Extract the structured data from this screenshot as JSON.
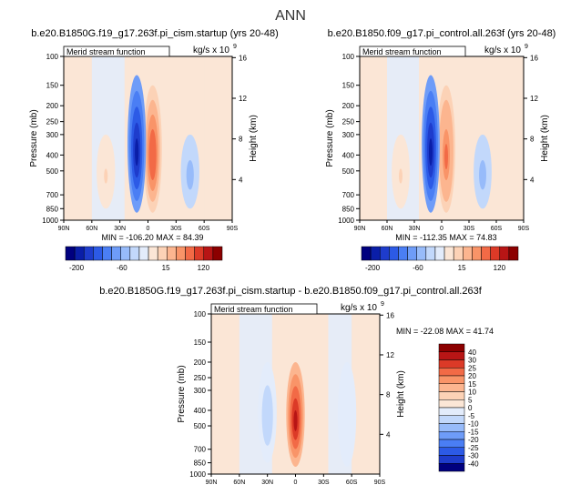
{
  "figure": {
    "title": "ANN",
    "panel1_title": "b.e20.B1850G.f19_g17.263f.pi_cism.startup (yrs 20-48)",
    "panel2_title": "b.e20.B1850.f09_g17.pi_control.all.263f (yrs 20-48)",
    "panel3_title": "b.e20.B1850G.f19_g17.263f.pi_cism.startup - b.e20.B1850.f09_g17.pi_control.all.263f"
  },
  "chart_data": [
    {
      "type": "heatmap",
      "panel": "top-left",
      "title": "Merid stream function",
      "units": "kg/s x 10",
      "units_exp": "9",
      "xlabel": "",
      "ylabel": "Pressure (mb)",
      "y2label": "Height (km)",
      "x_ticks": [
        "90N",
        "60N",
        "30N",
        "0",
        "30S",
        "60S",
        "90S"
      ],
      "y_ticks": [
        100,
        150,
        200,
        250,
        300,
        400,
        500,
        700,
        850,
        1000
      ],
      "y2_ticks": [
        4,
        8,
        12,
        16
      ],
      "ylim": [
        1000,
        100
      ],
      "min_text": "MIN = -106.20",
      "max_text": "MAX =  84.39",
      "min": -106.2,
      "max": 84.39,
      "colorbar": {
        "labels": [
          "-200",
          "-60",
          "15",
          "120"
        ],
        "colors": [
          "#00007f",
          "#0a1ea8",
          "#1e3ccc",
          "#2c5ae6",
          "#4a7ef4",
          "#6e9cf8",
          "#97bbfa",
          "#c2d8fb",
          "#e3ecfb",
          "#fbe6d6",
          "#fcd2b6",
          "#fcb58f",
          "#f99468",
          "#f26a46",
          "#dc3a27",
          "#b81515",
          "#8c0000"
        ]
      },
      "cells": [
        {
          "lat": -5,
          "p_top": 150,
          "p_bot": 900,
          "value": 80
        },
        {
          "lat": 12,
          "p_top": 130,
          "p_bot": 900,
          "value": -100
        },
        {
          "lat": -45,
          "p_top": 300,
          "p_bot": 850,
          "value": -30
        },
        {
          "lat": 45,
          "p_top": 300,
          "p_bot": 850,
          "value": 25
        }
      ]
    },
    {
      "type": "heatmap",
      "panel": "top-right",
      "title": "Merid stream function",
      "units": "kg/s x 10",
      "units_exp": "9",
      "xlabel": "",
      "ylabel": "Pressure (mb)",
      "y2label": "Height (km)",
      "x_ticks": [
        "90N",
        "60N",
        "30N",
        "0",
        "30S",
        "60S",
        "90S"
      ],
      "y_ticks": [
        100,
        150,
        200,
        250,
        300,
        400,
        500,
        700,
        850,
        1000
      ],
      "y2_ticks": [
        4,
        8,
        12,
        16
      ],
      "ylim": [
        1000,
        100
      ],
      "min_text": "MIN = -112.35",
      "max_text": "MAX =  74.83",
      "min": -112.35,
      "max": 74.83,
      "colorbar": {
        "labels": [
          "-200",
          "-60",
          "15",
          "120"
        ],
        "colors": [
          "#00007f",
          "#0a1ea8",
          "#1e3ccc",
          "#2c5ae6",
          "#4a7ef4",
          "#6e9cf8",
          "#97bbfa",
          "#c2d8fb",
          "#e3ecfb",
          "#fbe6d6",
          "#fcd2b6",
          "#fcb58f",
          "#f99468",
          "#f26a46",
          "#dc3a27",
          "#b81515",
          "#8c0000"
        ]
      },
      "cells": [
        {
          "lat": -5,
          "p_top": 150,
          "p_bot": 900,
          "value": 70
        },
        {
          "lat": 12,
          "p_top": 130,
          "p_bot": 900,
          "value": -110
        },
        {
          "lat": -45,
          "p_top": 300,
          "p_bot": 850,
          "value": -30
        },
        {
          "lat": 45,
          "p_top": 300,
          "p_bot": 850,
          "value": 25
        }
      ]
    },
    {
      "type": "heatmap",
      "panel": "bottom",
      "title": "Merid stream function",
      "units": "kg/s x 10",
      "units_exp": "9",
      "xlabel": "",
      "ylabel": "Pressure (mb)",
      "y2label": "Height (km)",
      "x_ticks": [
        "90N",
        "60N",
        "30N",
        "0",
        "30S",
        "60S",
        "90S"
      ],
      "y_ticks": [
        100,
        150,
        200,
        250,
        300,
        400,
        500,
        700,
        850,
        1000
      ],
      "y2_ticks": [
        4,
        8,
        12,
        16
      ],
      "ylim": [
        1000,
        100
      ],
      "min_text": "MIN = -22.08",
      "max_text": "MAX =  41.74",
      "min": -22.08,
      "max": 41.74,
      "colorbar": {
        "labels": [
          "40",
          "30",
          "25",
          "20",
          "15",
          "10",
          "5",
          "0",
          "-5",
          "-10",
          "-15",
          "-20",
          "-25",
          "-30",
          "-40"
        ],
        "colors": [
          "#8c0000",
          "#b81515",
          "#dc3a27",
          "#f26a46",
          "#f99468",
          "#fcb58f",
          "#fcd2b6",
          "#fbe6d6",
          "#e3ecfb",
          "#c2d8fb",
          "#97bbfa",
          "#6e9cf8",
          "#4a7ef4",
          "#2c5ae6",
          "#1e3ccc",
          "#00007f"
        ]
      },
      "cells": [
        {
          "lat": 0,
          "p_top": 200,
          "p_bot": 900,
          "value": 35
        },
        {
          "lat": 30,
          "p_top": 200,
          "p_bot": 850,
          "value": -8
        },
        {
          "lat": -55,
          "p_top": 200,
          "p_bot": 900,
          "value": -4
        }
      ]
    }
  ]
}
